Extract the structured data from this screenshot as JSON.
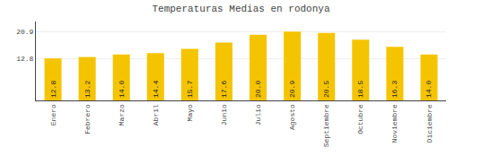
{
  "chart_data": {
    "type": "bar",
    "title": "Temperaturas Medias en rodonya",
    "categories": [
      "Enero",
      "Febrero",
      "Marzo",
      "Abril",
      "Mayo",
      "Junio",
      "Julio",
      "Agosto",
      "Septiembre",
      "Octubre",
      "Noviembre",
      "Diciembre"
    ],
    "values": [
      12.8,
      13.2,
      14.0,
      14.4,
      15.7,
      17.6,
      20.0,
      20.9,
      20.5,
      18.5,
      16.3,
      14.0
    ],
    "value_labels": [
      "12.8",
      "13.2",
      "14.0",
      "14.4",
      "15.7",
      "17.6",
      "20.0",
      "20.9",
      "20.5",
      "18.5",
      "16.3",
      "14.0"
    ],
    "color": "#F5C400",
    "ylim": [
      0,
      24.0
    ],
    "yticks": [
      12.8,
      20.9
    ],
    "y2lim": [
      0,
      24.0
    ],
    "y2ticks": [
      12.8,
      20.9
    ],
    "grid": true,
    "data_labels": true
  }
}
